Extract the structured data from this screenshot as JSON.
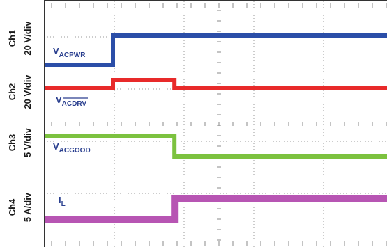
{
  "chart_data": {
    "type": "line",
    "title": "",
    "xlabel": "",
    "ylabel": "",
    "grid": true,
    "x": [
      0,
      1,
      1.9,
      2.8,
      5
    ],
    "series": [
      {
        "channel": "Ch1",
        "scale": "20 V/div",
        "name_main": "V",
        "name_sub": "ACPWR",
        "overline": false,
        "color": "#2b4ea8",
        "values": [
          0,
          20,
          20,
          20,
          20
        ]
      },
      {
        "channel": "Ch2",
        "scale": "20 V/div",
        "name_main": "V",
        "name_sub": "ACDRV",
        "overline": true,
        "color": "#e82a2a",
        "values": [
          0,
          2.5,
          0,
          0,
          0
        ]
      },
      {
        "channel": "Ch3",
        "scale": "5 V/div",
        "name_main": "V",
        "name_sub": "ACGOOD",
        "overline": false,
        "color": "#7cc23f",
        "values": [
          5,
          5,
          0,
          0,
          0
        ]
      },
      {
        "channel": "Ch4",
        "scale": "5 A/div",
        "name_main": "I",
        "name_sub": "L",
        "overline": false,
        "color": "#b755b3",
        "values": [
          0,
          0,
          5,
          5,
          5
        ]
      }
    ]
  }
}
